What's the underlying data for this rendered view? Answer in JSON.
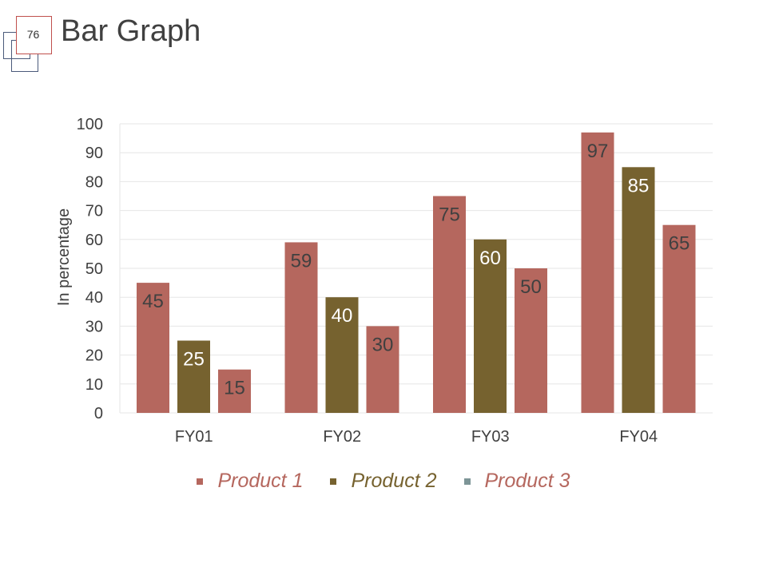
{
  "slide": {
    "number": "76",
    "title": "Bar Graph"
  },
  "colors": {
    "product1": "#b5675e",
    "product2": "#76622f",
    "product3": "#b5675e",
    "product3_marker": "#7d9597",
    "grid": "#e6e6e6",
    "axis_text": "#404040"
  },
  "chart_data": {
    "type": "bar",
    "categories": [
      "FY01",
      "FY02",
      "FY03",
      "FY04"
    ],
    "series": [
      {
        "name": "Product 1",
        "values": [
          45,
          59,
          75,
          97
        ]
      },
      {
        "name": "Product 2",
        "values": [
          25,
          40,
          60,
          85
        ]
      },
      {
        "name": "Product 3",
        "values": [
          15,
          30,
          50,
          65
        ]
      }
    ],
    "title": "",
    "xlabel": "",
    "ylabel": "In percentage",
    "ylim": [
      0,
      100
    ],
    "yticks": [
      0,
      10,
      20,
      30,
      40,
      50,
      60,
      70,
      80,
      90,
      100
    ],
    "grid": true,
    "legend": "bottom",
    "data_labels": true
  }
}
